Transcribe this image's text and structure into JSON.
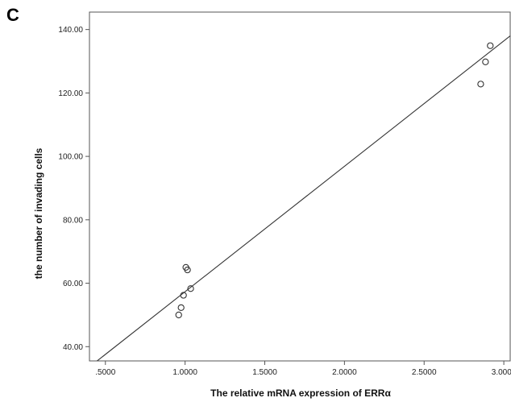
{
  "panel_label": "C",
  "chart_data": {
    "type": "scatter",
    "xlabel": "The relative mRNA expression of ERRα",
    "ylabel": "the number of invading cells",
    "xlim": [
      0.4,
      3.04
    ],
    "ylim": [
      35.5,
      145.5
    ],
    "x_ticks": [
      0.5,
      1.0,
      1.5,
      2.0,
      2.5,
      3.0
    ],
    "x_tick_labels": [
      ".5000",
      "1.0000",
      "1.5000",
      "2.0000",
      "2.5000",
      "3.0000"
    ],
    "y_ticks": [
      40,
      60,
      80,
      100,
      120,
      140
    ],
    "y_tick_labels": [
      "40.00",
      "60.00",
      "80.00",
      "100.00",
      "120.00",
      "140.00"
    ],
    "grid": false,
    "legend": "none",
    "points": [
      {
        "x": 0.96,
        "y": 50.0
      },
      {
        "x": 0.975,
        "y": 52.3
      },
      {
        "x": 0.99,
        "y": 56.2
      },
      {
        "x": 1.005,
        "y": 65.0
      },
      {
        "x": 1.015,
        "y": 64.2
      },
      {
        "x": 1.035,
        "y": 58.3
      },
      {
        "x": 2.855,
        "y": 122.8
      },
      {
        "x": 2.885,
        "y": 129.8
      },
      {
        "x": 2.915,
        "y": 134.9
      }
    ],
    "fit_line": {
      "x": [
        0.4,
        3.04
      ],
      "y": [
        33.6,
        138.0
      ]
    },
    "marker_color": "#333333",
    "line_color": "#333333"
  }
}
